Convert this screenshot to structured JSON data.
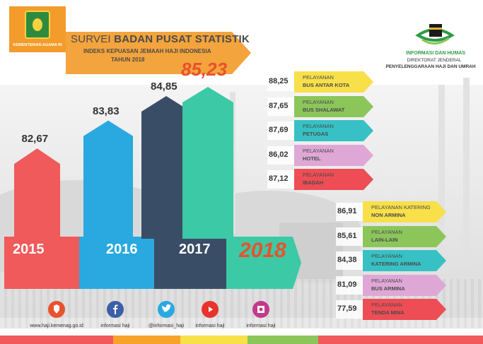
{
  "header": {
    "logo_text": "KEMENTERIAN AGAMA RI",
    "title_prefix": "SURVEI ",
    "title_bold": "BADAN PUSAT STATISTIK",
    "subtitle": "INDEKS KEPUASAN JEMAAH HAJI INDONESIA",
    "year_line": "TAHUN 2018",
    "brand_title": "INFORMASI DAN HUMAS",
    "brand_line1": "DIREKTORAT JENDERAL",
    "brand_line2": "PENYELENGGARAAN HAJI DAN UMRAH"
  },
  "chart_data": {
    "type": "bar",
    "categories": [
      "2015",
      "2016",
      "2017",
      "2018"
    ],
    "values": [
      82.67,
      83.83,
      84.85,
      85.23
    ],
    "value_labels": [
      "82,67",
      "83,83",
      "84,85",
      "85,23"
    ],
    "colors": [
      "#f05a5b",
      "#29a9e0",
      "#3a4d66",
      "#3cc9a6"
    ]
  },
  "services_a": [
    {
      "value": "88,25",
      "line1": "Pelayanan",
      "line2": "BUS ANTAR KOTA",
      "color": "#f7e04a"
    },
    {
      "value": "87,65",
      "line1": "Pelayanan",
      "line2": "BUS SHALAWAT",
      "color": "#8cc65a"
    },
    {
      "value": "87,69",
      "line1": "Pelayanan",
      "line2": "PETUGAS",
      "color": "#37c1c4"
    },
    {
      "value": "86,02",
      "line1": "Pelayanan",
      "line2": "HOTEL",
      "color": "#dfa7d6"
    },
    {
      "value": "87,12",
      "line1": "Pelayanan",
      "line2": "IBADAH",
      "color": "#ee4d55"
    }
  ],
  "services_b": [
    {
      "value": "86,91",
      "line1": "Pelayanan Katering",
      "line2": "NON ARMINA",
      "color": "#f7e04a"
    },
    {
      "value": "85,61",
      "line1": "Pelayanan",
      "line2": "LAIN-LAIN",
      "color": "#8cc65a"
    },
    {
      "value": "84,38",
      "line1": "Pelayanan",
      "line2": "KATERING ARMINA",
      "color": "#37c1c4"
    },
    {
      "value": "81,09",
      "line1": "Pelayanan",
      "line2": "BUS ARMINA",
      "color": "#dfa7d6"
    },
    {
      "value": "77,59",
      "line1": "Pelayanan",
      "line2": "TENDA MINA",
      "color": "#ee4d55"
    }
  ],
  "footer": {
    "items": [
      {
        "label": "www.haji.kemenag.go.id",
        "icon": "web-link-icon",
        "color": "#e8522c"
      },
      {
        "label": "informasi haji",
        "icon": "facebook-icon",
        "color": "#3b5fa8"
      },
      {
        "label": "@informasi_haji",
        "icon": "twitter-icon",
        "color": "#29a9e0"
      },
      {
        "label": "informasi haji",
        "icon": "youtube-icon",
        "color": "#e8322c"
      },
      {
        "label": "informasi haji",
        "icon": "instagram-icon",
        "color": "#c23a8a"
      }
    ],
    "strip_colors": [
      "#f05a5b",
      "#f7a32b",
      "#f7e04a",
      "#8cc65a"
    ]
  }
}
